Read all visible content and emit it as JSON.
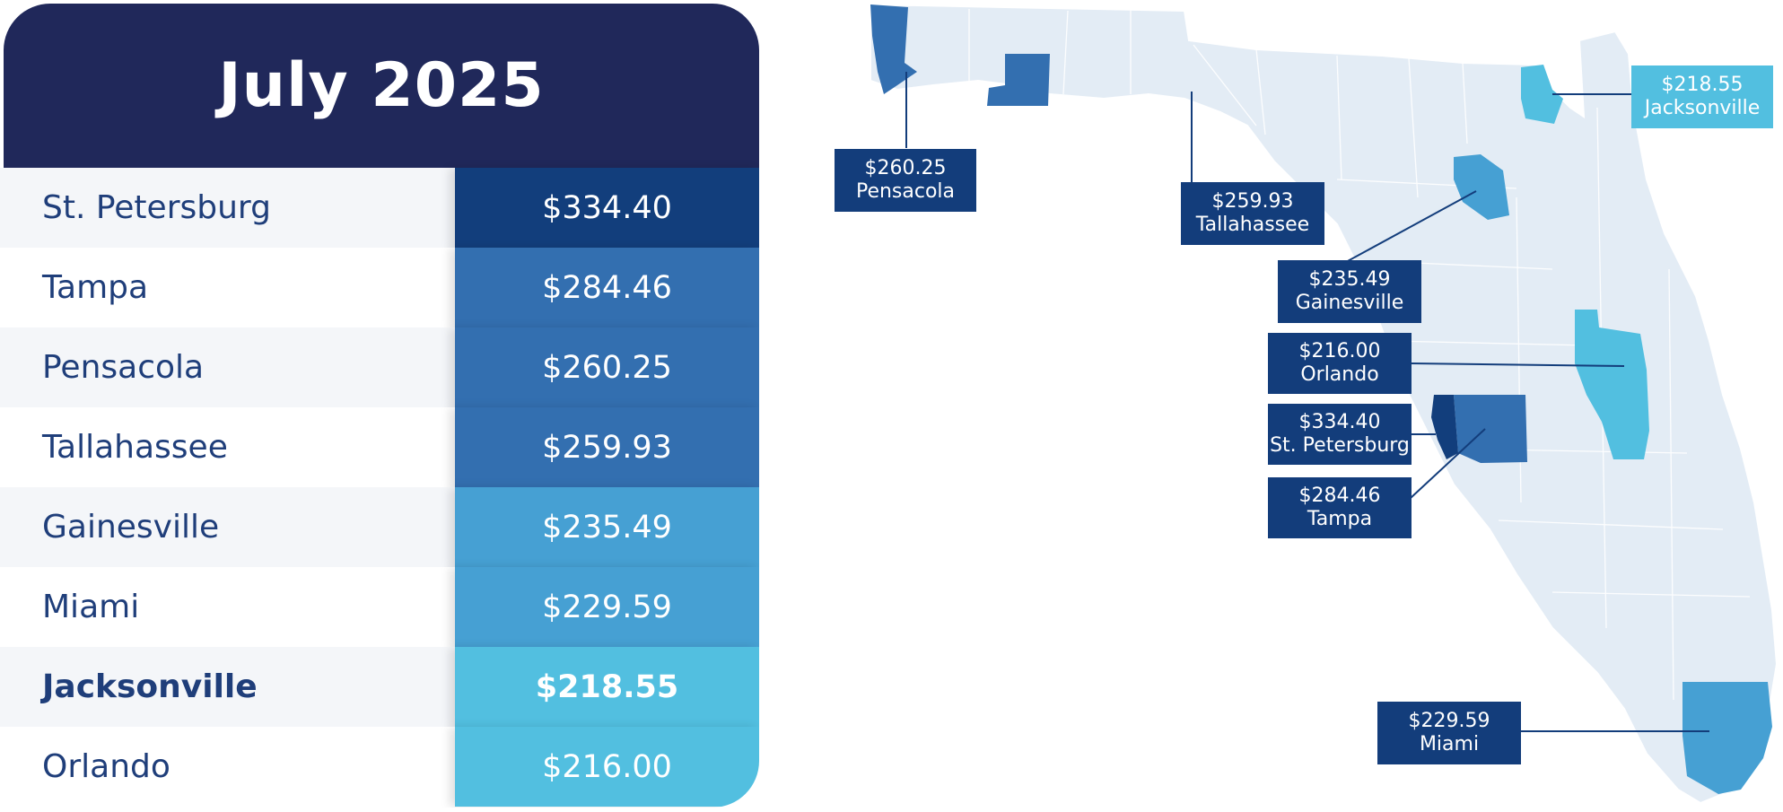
{
  "title": "July 2025",
  "colors": {
    "header_bg": "#20285a",
    "city_text": "#1f3e7a",
    "tier_darkest": "#123e7c",
    "tier_dark": "#336fb0",
    "tier_mid": "#46a0d3",
    "tier_light": "#52bfe0",
    "land": "#e3ecf5",
    "label_bg": "#133d7b"
  },
  "rows": [
    {
      "city": "St. Petersburg",
      "price": "$334.40",
      "color": "#123e7c",
      "bold": false
    },
    {
      "city": "Tampa",
      "price": "$284.46",
      "color": "#336fb0",
      "bold": false
    },
    {
      "city": "Pensacola",
      "price": "$260.25",
      "color": "#336fb0",
      "bold": false
    },
    {
      "city": "Tallahassee",
      "price": "$259.93",
      "color": "#336fb0",
      "bold": false
    },
    {
      "city": "Gainesville",
      "price": "$235.49",
      "color": "#46a0d3",
      "bold": false
    },
    {
      "city": "Miami",
      "price": "$229.59",
      "color": "#46a0d3",
      "bold": false
    },
    {
      "city": "Jacksonville",
      "price": "$218.55",
      "color": "#52bfe0",
      "bold": true
    },
    {
      "city": "Orlando",
      "price": "$216.00",
      "color": "#52bfe0",
      "bold": false
    }
  ],
  "map_labels": {
    "pensacola": {
      "price": "$260.25",
      "city": "Pensacola"
    },
    "tallahassee": {
      "price": "$259.93",
      "city": "Tallahassee"
    },
    "jacksonville": {
      "price": "$218.55",
      "city": "Jacksonville"
    },
    "gainesville": {
      "price": "$235.49",
      "city": "Gainesville"
    },
    "orlando": {
      "price": "$216.00",
      "city": "Orlando"
    },
    "st_petersburg": {
      "price": "$334.40",
      "city": "St. Petersburg"
    },
    "tampa": {
      "price": "$284.46",
      "city": "Tampa"
    },
    "miami": {
      "price": "$229.59",
      "city": "Miami"
    }
  }
}
